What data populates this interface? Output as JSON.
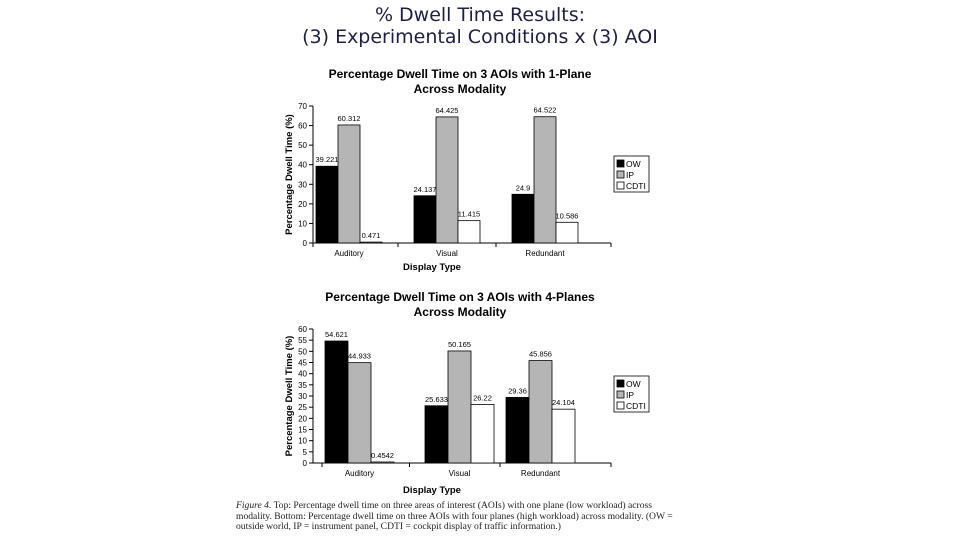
{
  "slide": {
    "title_line1": "% Dwell Time Results:",
    "title_line2": "(3) Experimental Conditions x (3) AOI"
  },
  "caption": {
    "label": "Figure 4.",
    "text": " Top: Percentage dwell time on three areas of interest (AOIs) with one plane (low workload) across modality. Bottom: Percentage dwell time on three AOIs with four planes (high workload) across modality. (OW = outside world, IP = instrument panel, CDTI = cockpit display of traffic information.)"
  },
  "chart_data": [
    {
      "type": "bar",
      "title": "Percentage Dwell Time on 3 AOIs with 1-Plane Across Modality",
      "title_lines": [
        "Percentage Dwell Time on 3 AOIs with 1-Plane",
        "Across Modality"
      ],
      "xlabel": "Display Type",
      "ylabel": "Percentage Dwell Time (%)",
      "ylim": [
        0,
        70
      ],
      "yticks": [
        0,
        10,
        20,
        30,
        40,
        50,
        60,
        70
      ],
      "categories": [
        "Auditory",
        "Visual",
        "Redundant"
      ],
      "series": [
        {
          "name": "OW",
          "values": [
            39.221,
            24.137,
            24.9
          ],
          "labels": [
            "39.221",
            "24.137",
            "24.9"
          ],
          "color": "#000000"
        },
        {
          "name": "IP",
          "values": [
            60.312,
            64.425,
            64.522
          ],
          "labels": [
            "60.312",
            "64.425",
            "64.522"
          ],
          "color": "#b5b5b5"
        },
        {
          "name": "CDTI",
          "values": [
            0.471,
            11.415,
            10.586
          ],
          "labels": [
            "0.471",
            "11.415",
            "10.586"
          ],
          "color": "#ffffff"
        }
      ],
      "legend": "right"
    },
    {
      "type": "bar",
      "title": "Percentage Dwell Time on 3 AOIs with 4-Planes Across Modality",
      "title_lines": [
        "Percentage Dwell Time on 3 AOIs with 4-Planes",
        "Across Modality"
      ],
      "xlabel": "Display Type",
      "ylabel": "Percentage Dwell Time (%)",
      "ylim": [
        0,
        60
      ],
      "yticks": [
        0,
        5,
        10,
        15,
        20,
        25,
        30,
        35,
        40,
        45,
        50,
        55,
        60
      ],
      "categories": [
        "Auditory",
        "Visual",
        "Redundant"
      ],
      "series": [
        {
          "name": "OW",
          "values": [
            54.621,
            25.633,
            29.36
          ],
          "labels": [
            "54.621",
            "25.633",
            "29.36"
          ],
          "color": "#000000"
        },
        {
          "name": "IP",
          "values": [
            44.933,
            50.165,
            45.856
          ],
          "labels": [
            "44.933",
            "50.165",
            "45.856"
          ],
          "color": "#b5b5b5"
        },
        {
          "name": "CDTI",
          "values": [
            0.4542,
            26.22,
            24.104
          ],
          "labels": [
            "0.4542",
            "26.22",
            "24.104"
          ],
          "color": "#ffffff"
        }
      ],
      "legend": "right"
    }
  ]
}
